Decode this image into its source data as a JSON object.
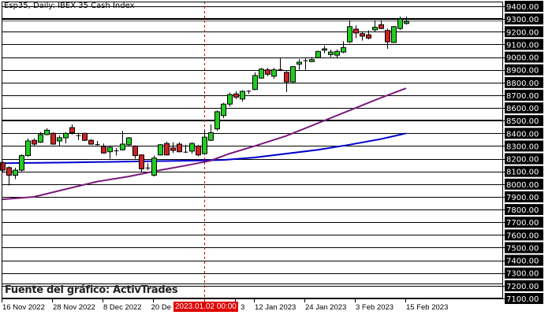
{
  "header": {
    "title": "Esp35, Daily:  IBEX 35 Cash Index"
  },
  "source_label": "Fuente del gráfico: ActivTrades",
  "cursor": {
    "date_label": "2023.01.02 00:00"
  },
  "colors": {
    "bull": "#22cc22",
    "bear": "#cc2222",
    "ma_fast": "#0000cc",
    "ma_slow": "#7a1a7a",
    "cursor": "#cc0000",
    "axis_label_bg": "#000000"
  },
  "chart_data": {
    "type": "candlestick",
    "symbol": "Esp35",
    "timeframe": "Daily",
    "ylim": [
      7100,
      9400
    ],
    "y_ticks": [
      "9400.00",
      "9300.00",
      "9200.00",
      "9100.00",
      "9000.00",
      "8900.00",
      "8800.00",
      "8700.00",
      "8600.00",
      "8500.00",
      "8400.00",
      "8300.00",
      "8200.00",
      "8100.00",
      "8000.00",
      "7900.00",
      "7800.00",
      "7700.00",
      "7600.00",
      "7500.00",
      "7400.00",
      "7300.00",
      "7200.00",
      "7100.00"
    ],
    "extra_levels": [
      9310,
      9290,
      8510
    ],
    "x_ticks": [
      {
        "label": "16 Nov 2022",
        "index": 0
      },
      {
        "label": "28 Nov 2022",
        "index": 8
      },
      {
        "label": "8 Dec 2022",
        "index": 16
      },
      {
        "label": "20 De",
        "index": 24
      },
      {
        "label": "3",
        "index": 37
      },
      {
        "label": "12 Jan 2023",
        "index": 40
      },
      {
        "label": "24 Jan 2023",
        "index": 48
      },
      {
        "label": "3 Feb 2023",
        "index": 56
      },
      {
        "label": "15 Feb 2023",
        "index": 64
      }
    ],
    "cursor_index": 32,
    "ohlc": [
      [
        8170,
        8180,
        8100,
        8110
      ],
      [
        8130,
        8140,
        7990,
        8070
      ],
      [
        8070,
        8130,
        8040,
        8110
      ],
      [
        8110,
        8235,
        8100,
        8225
      ],
      [
        8225,
        8360,
        8215,
        8340
      ],
      [
        8345,
        8360,
        8300,
        8315
      ],
      [
        8330,
        8410,
        8325,
        8390
      ],
      [
        8390,
        8440,
        8385,
        8425
      ],
      [
        8400,
        8410,
        8310,
        8315
      ],
      [
        8340,
        8385,
        8300,
        8365
      ],
      [
        8365,
        8410,
        8320,
        8400
      ],
      [
        8445,
        8470,
        8390,
        8405
      ],
      [
        8385,
        8405,
        8345,
        8385
      ],
      [
        8400,
        8405,
        8340,
        8345
      ],
      [
        8345,
        8355,
        8310,
        8315
      ],
      [
        8315,
        8340,
        8300,
        8312
      ],
      [
        8295,
        8320,
        8240,
        8245
      ],
      [
        8255,
        8295,
        8200,
        8290
      ],
      [
        8265,
        8285,
        8225,
        8263
      ],
      [
        8270,
        8420,
        8265,
        8315
      ],
      [
        8310,
        8370,
        8300,
        8365
      ],
      [
        8300,
        8305,
        8200,
        8225
      ],
      [
        8230,
        8235,
        8095,
        8120
      ],
      [
        8130,
        8165,
        8110,
        8128
      ],
      [
        8070,
        8225,
        8060,
        8205
      ],
      [
        8230,
        8315,
        8225,
        8310
      ],
      [
        8320,
        8335,
        8225,
        8230
      ],
      [
        8285,
        8330,
        8245,
        8265
      ],
      [
        8315,
        8330,
        8250,
        8255
      ],
      [
        8255,
        8310,
        8245,
        8253
      ],
      [
        8260,
        8330,
        8240,
        8320
      ],
      [
        8300,
        8310,
        8220,
        8230
      ],
      [
        8240,
        8420,
        8230,
        8370
      ],
      [
        8345,
        8470,
        8340,
        8405
      ],
      [
        8435,
        8580,
        8420,
        8570
      ],
      [
        8540,
        8640,
        8520,
        8630
      ],
      [
        8630,
        8720,
        8610,
        8705
      ],
      [
        8710,
        8730,
        8670,
        8685
      ],
      [
        8670,
        8740,
        8650,
        8730
      ],
      [
        8735,
        8740,
        8710,
        8733
      ],
      [
        8745,
        8880,
        8740,
        8855
      ],
      [
        8835,
        8915,
        8830,
        8905
      ],
      [
        8900,
        8915,
        8850,
        8865
      ],
      [
        8850,
        8915,
        8830,
        8900
      ],
      [
        8905,
        8990,
        8890,
        8903
      ],
      [
        8880,
        8890,
        8725,
        8805
      ],
      [
        8805,
        8930,
        8800,
        8925
      ],
      [
        8945,
        8985,
        8900,
        8960
      ],
      [
        8975,
        8990,
        8900,
        8973
      ],
      [
        8965,
        9000,
        8960,
        8980
      ],
      [
        8995,
        9050,
        8990,
        9045
      ],
      [
        9055,
        9090,
        9030,
        9065
      ],
      [
        9020,
        9060,
        9000,
        9040
      ],
      [
        9015,
        9060,
        8990,
        9045
      ],
      [
        9040,
        9125,
        9030,
        9075
      ],
      [
        9120,
        9290,
        9110,
        9240
      ],
      [
        9220,
        9250,
        9150,
        9190
      ],
      [
        9185,
        9200,
        9130,
        9165
      ],
      [
        9175,
        9210,
        9140,
        9150
      ],
      [
        9215,
        9290,
        9200,
        9235
      ],
      [
        9255,
        9290,
        9220,
        9225
      ],
      [
        9210,
        9225,
        9065,
        9120
      ],
      [
        9115,
        9245,
        9110,
        9240
      ],
      [
        9225,
        9320,
        9215,
        9300
      ],
      [
        9265,
        9320,
        9255,
        9280
      ]
    ],
    "series": [
      {
        "type": "line",
        "color": "#0000cc",
        "points": [
          [
            0,
            8165
          ],
          [
            10,
            8170
          ],
          [
            20,
            8178
          ],
          [
            30,
            8185
          ],
          [
            35,
            8190
          ],
          [
            40,
            8210
          ],
          [
            45,
            8240
          ],
          [
            50,
            8270
          ],
          [
            55,
            8310
          ],
          [
            60,
            8355
          ],
          [
            64,
            8400
          ]
        ]
      },
      {
        "type": "line",
        "color": "#7a1a7a",
        "points": [
          [
            0,
            7880
          ],
          [
            5,
            7900
          ],
          [
            10,
            7960
          ],
          [
            15,
            8020
          ],
          [
            20,
            8060
          ],
          [
            25,
            8110
          ],
          [
            30,
            8155
          ],
          [
            33,
            8185
          ],
          [
            36,
            8240
          ],
          [
            40,
            8300
          ],
          [
            45,
            8380
          ],
          [
            50,
            8480
          ],
          [
            55,
            8580
          ],
          [
            60,
            8680
          ],
          [
            64,
            8755
          ]
        ]
      }
    ]
  }
}
